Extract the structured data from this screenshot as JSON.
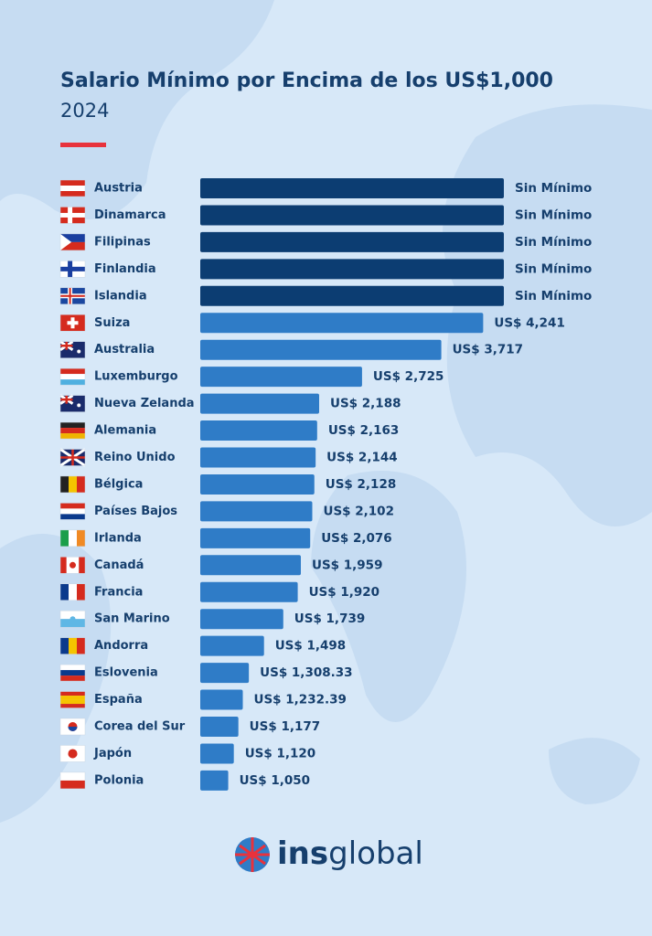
{
  "chart_data": {
    "type": "bar",
    "orientation": "horizontal",
    "title": "Salario Mínimo por Encima de los US$1,000",
    "subtitle": "2024",
    "categories": [
      "Austria",
      "Dinamarca",
      "Filipinas",
      "Finlandia",
      "Islandia",
      "Suiza",
      "Australia",
      "Luxemburgo",
      "Nueva Zelanda",
      "Alemania",
      "Reino Unido",
      "Bélgica",
      "Países Bajos",
      "Irlanda",
      "Canadá",
      "Francia",
      "San Marino",
      "Andorra",
      "Eslovenia",
      "España",
      "Corea del Sur",
      "Japón",
      "Polonia"
    ],
    "values": [
      null,
      null,
      null,
      null,
      null,
      4241,
      3717,
      2725,
      2188,
      2163,
      2144,
      2128,
      2102,
      2076,
      1959,
      1920,
      1739,
      1498,
      1308.33,
      1232.39,
      1177,
      1120,
      1050
    ],
    "value_labels": [
      "Sin Mínimo",
      "Sin Mínimo",
      "Sin Mínimo",
      "Sin Mínimo",
      "Sin Mínimo",
      "US$ 4,241",
      "US$ 3,717",
      "US$ 2,725",
      "US$ 2,188",
      "US$ 2,163",
      "US$ 2,144",
      "US$ 2,128",
      "US$ 2,102",
      "US$ 2,076",
      "US$ 1,959",
      "US$ 1,920",
      "US$ 1,739",
      "US$ 1,498",
      "US$ 1,308.33",
      "US$ 1,232.39",
      "US$ 1,177",
      "US$ 1,120",
      "US$ 1,050"
    ],
    "color": "#2f7cc7",
    "no_value_color": "#0c3d72",
    "xlim": [
      700,
      4500
    ]
  },
  "logo": {
    "bold": "ins",
    "light": "global"
  }
}
